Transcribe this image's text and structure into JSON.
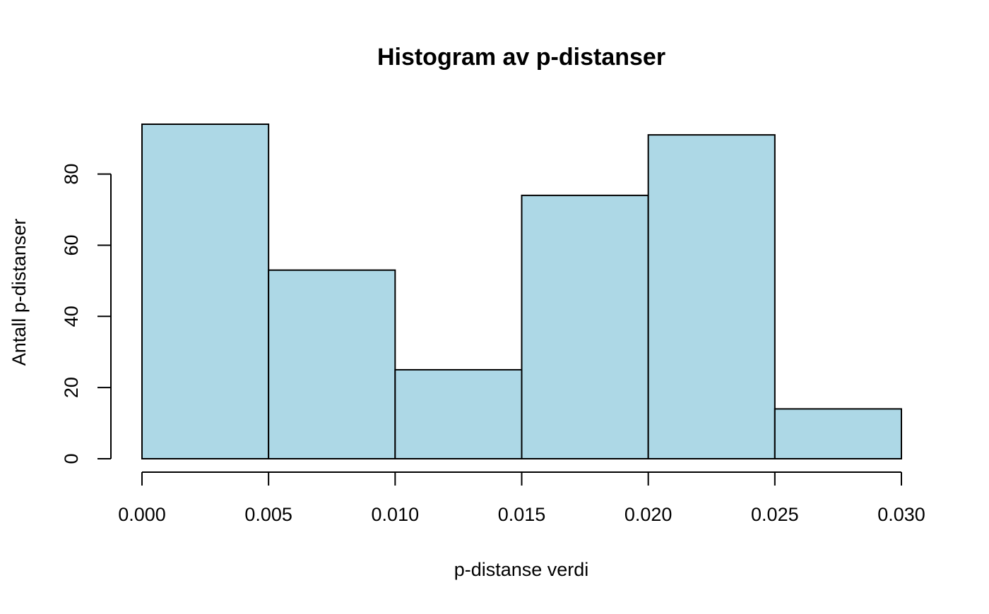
{
  "chart_data": {
    "type": "bar",
    "title": "Histogram av p-distanser",
    "xlabel": "p-distanse verdi",
    "ylabel": "Antall p-distanser",
    "bins": [
      {
        "start": 0.0,
        "end": 0.005,
        "count": 94
      },
      {
        "start": 0.005,
        "end": 0.01,
        "count": 53
      },
      {
        "start": 0.01,
        "end": 0.015,
        "count": 25
      },
      {
        "start": 0.015,
        "end": 0.02,
        "count": 74
      },
      {
        "start": 0.02,
        "end": 0.025,
        "count": 91
      },
      {
        "start": 0.025,
        "end": 0.03,
        "count": 14
      }
    ],
    "xlim": [
      0.0,
      0.03
    ],
    "ylim": [
      0,
      94
    ],
    "x_ticks": [
      "0.000",
      "0.005",
      "0.010",
      "0.015",
      "0.020",
      "0.025",
      "0.030"
    ],
    "y_ticks": [
      "0",
      "20",
      "40",
      "60",
      "80"
    ],
    "grid": false,
    "legend": "none",
    "bar_fill_color": "#add8e6",
    "bar_stroke_color": "#000000"
  }
}
